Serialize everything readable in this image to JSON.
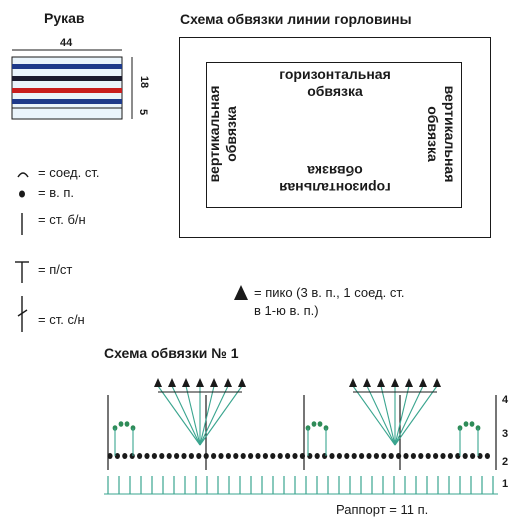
{
  "sleeve": {
    "title": "Рукав",
    "width": "44",
    "height_main": "18",
    "height_edge": "5",
    "stripe_colors": [
      "#1e3a8a",
      "#1b1b2e",
      "#c81e1e",
      "#1e3a8a"
    ],
    "stripe_bg": "#eaf4fb"
  },
  "neckline": {
    "title": "Схема обвязки линии горловины",
    "top_line1": "горизонтальная",
    "top_line2": "обвязка",
    "left_line1": "вертикальная",
    "left_line2": "обвязка",
    "right_line1": "вертикальная",
    "right_line2": "обвязка",
    "bottom_line1": "горизонтальная",
    "bottom_line2": "обвязка"
  },
  "legend": [
    {
      "icon": "slip-stitch-icon",
      "text": "= соед. ст."
    },
    {
      "icon": "chain-stitch-icon",
      "text": "= в. п."
    },
    {
      "icon": "single-crochet-icon",
      "text": "= ст. б/н"
    },
    {
      "icon": "half-double-crochet-icon",
      "text": "= п/ст"
    },
    {
      "icon": "double-crochet-icon",
      "text": "= ст. с/н"
    }
  ],
  "picot": {
    "line1": "= пико (3 в. п., 1 соед. ст.",
    "line2": "в 1-ю в. п.)"
  },
  "scheme1": {
    "title": "Схема обвязки № 1",
    "rows": [
      "4",
      "3",
      "2",
      "1"
    ],
    "repeat": "Раппорт = 11 п.",
    "colors": {
      "chain": "#1a1a1a",
      "green": "#2e8b57",
      "teal": "#3aa58f"
    }
  }
}
